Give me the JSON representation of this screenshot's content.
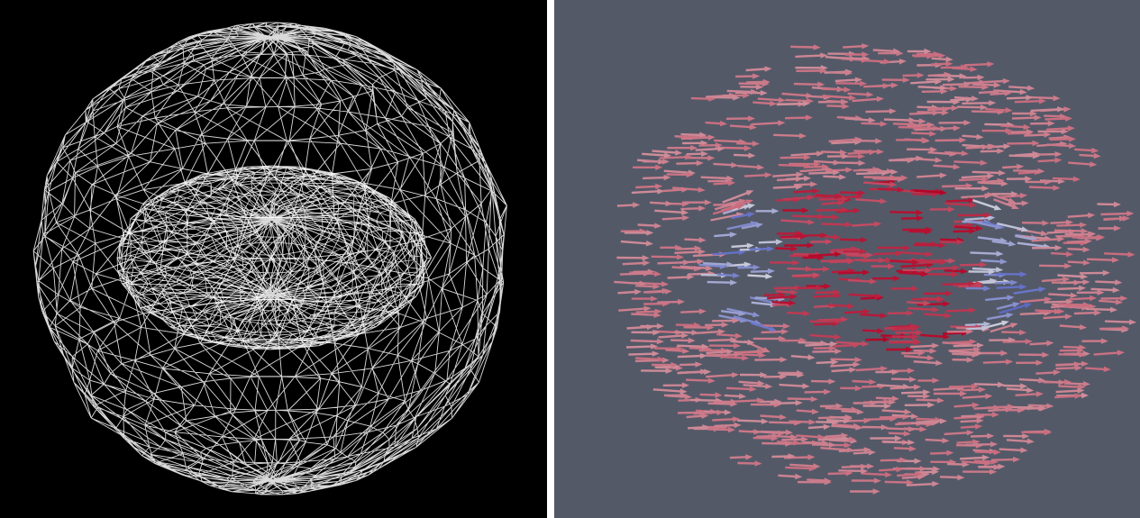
{
  "figure": {
    "panels": [
      {
        "id": "mesh",
        "background": "#000000",
        "line_color": "#ffffff",
        "outer_shape": "sphere",
        "inner_shape": "ellipsoid",
        "style": "triangulated-wireframe"
      },
      {
        "id": "vectors",
        "background": "#545968",
        "glyph": "arrow",
        "flow_direction": "left-to-right",
        "colormap": [
          "#3b4cc0",
          "#dddcdc",
          "#b40426"
        ]
      }
    ],
    "separator_color": "#ffffff"
  }
}
